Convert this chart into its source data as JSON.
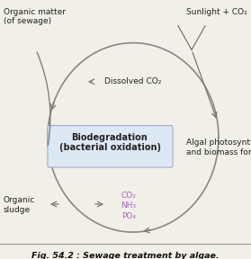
{
  "fig_width": 2.79,
  "fig_height": 2.88,
  "dpi": 100,
  "bg_color": "#f0efe8",
  "caption": "Fig. 54.2 : Sewage treatment by algae.",
  "box_label_line1": "Biodegradation",
  "box_label_line2": "(bacterial oxidation)",
  "box_facecolor": "#dde8f5",
  "box_edgecolor": "#aaaacc",
  "text_color": "#222222",
  "purple_color": "#aa66bb",
  "arrow_color": "#777777",
  "circle_color": "#888888",
  "caption_color": "#111111"
}
